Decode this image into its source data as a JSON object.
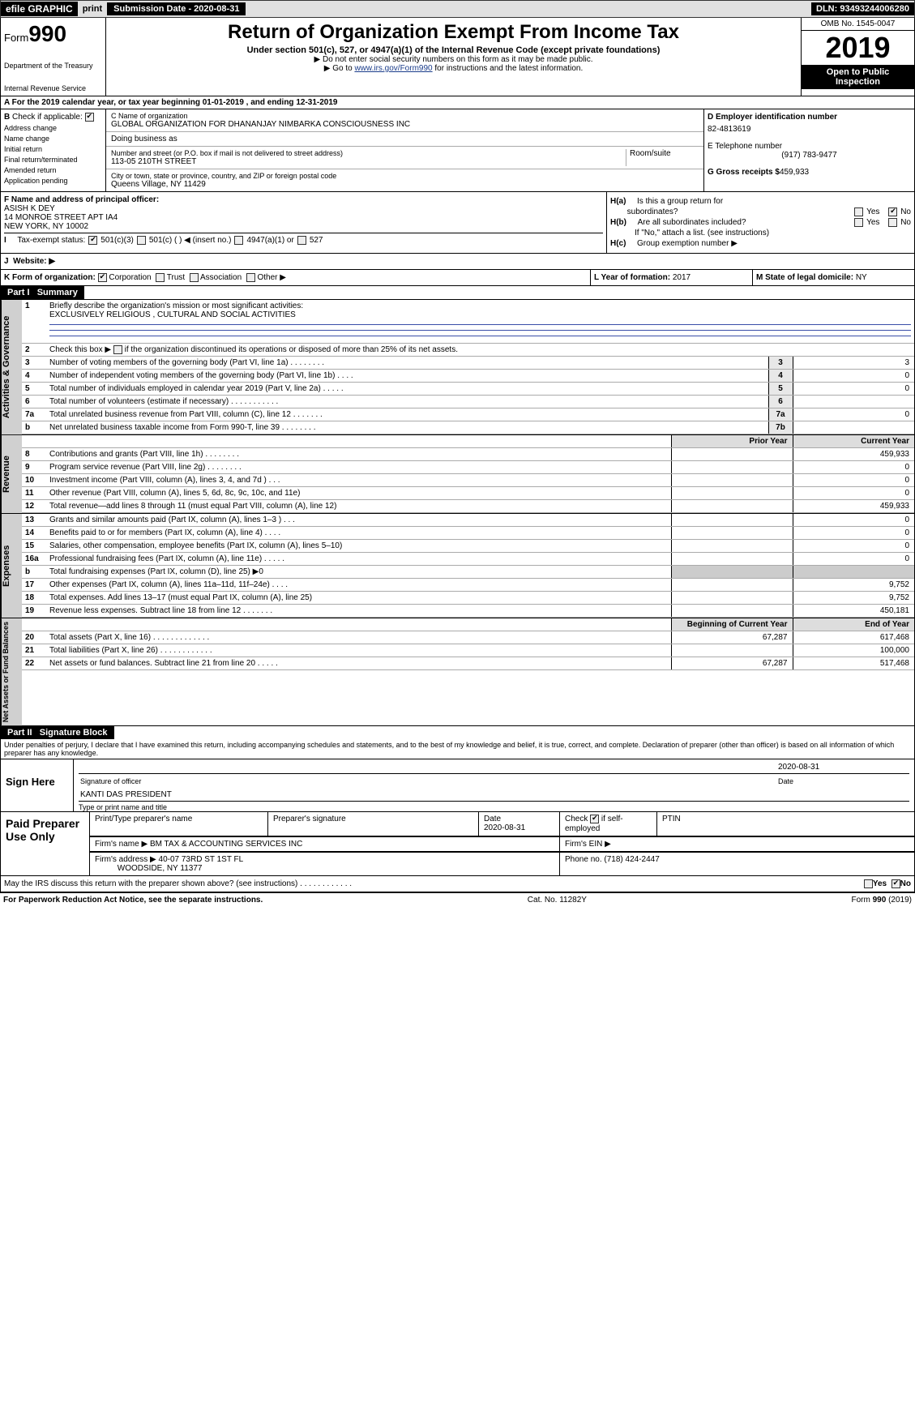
{
  "topbar": {
    "efile": "efile GRAPHIC",
    "print": "print",
    "subdate_label": "Submission Date - ",
    "subdate": "2020-08-31",
    "dln": "DLN: 93493244006280"
  },
  "header": {
    "form_label": "Form",
    "form_no": "990",
    "title": "Return of Organization Exempt From Income Tax",
    "subtitle": "Under section 501(c), 527, or 4947(a)(1) of the Internal Revenue Code (except private foundations)",
    "note1": "▶ Do not enter social security numbers on this form as it may be made public.",
    "note2_pre": "▶ Go to ",
    "note2_link": "www.irs.gov/Form990",
    "note2_post": " for instructions and the latest information.",
    "dept": "Department of the Treasury",
    "irs": "Internal Revenue Service",
    "omb": "OMB No. 1545-0047",
    "year": "2019",
    "open": "Open to Public",
    "insp": "Inspection"
  },
  "rowA": {
    "text": "A   For the 2019 calendar year, or tax year beginning 01-01-2019        , and ending 12-31-2019"
  },
  "secB": {
    "label": "B",
    "check_label": "Check if applicable:",
    "opts": [
      "Address change",
      "Name change",
      "Initial return",
      "Final return/terminated",
      "Amended return",
      "Application pending"
    ],
    "c_label": "C Name of organization",
    "org": "GLOBAL ORGANIZATION FOR DHANANJAY NIMBARKA CONSCIOUSNESS INC",
    "dba_label": "Doing business as",
    "addr_label": "Number and street (or P.O. box if mail is not delivered to street address)",
    "room": "Room/suite",
    "addr": "113-05 210TH STREET",
    "city_label": "City or town, state or province, country, and ZIP or foreign postal code",
    "city": "Queens Village, NY  11429",
    "d_label": "D Employer identification number",
    "ein": "82-4813619",
    "e_label": "E Telephone number",
    "phone": "(917) 783-9477",
    "g_label": "G Gross receipts $",
    "gross": "459,933"
  },
  "secF": {
    "f_label": "F  Name and address of principal officer:",
    "officer": "ASISH K DEY",
    "officer_addr": "14 MONROE STREET APT IA4",
    "officer_city": "NEW YORK, NY  10002",
    "i_label": "I",
    "tax_label": "Tax-exempt status:",
    "i501c3": "501(c)(3)",
    "i501c": "501(c) (   ) ◀ (insert no.)",
    "i4947": "4947(a)(1) or",
    "i527": "527",
    "ha": "H(a)",
    "ha_q": "Is this a group return for",
    "ha_q2": "subordinates?",
    "yes": "Yes",
    "no": "No",
    "hb": "H(b)",
    "hb_q": "Are all subordinates included?",
    "hb_note": "If \"No,\" attach a list. (see instructions)",
    "hc": "H(c)",
    "hc_q": "Group exemption number ▶"
  },
  "rowJ": {
    "label": "J",
    "website": "Website: ▶"
  },
  "rowK": {
    "k_label": "K Form of organization:",
    "corp": "Corporation",
    "trust": "Trust",
    "assoc": "Association",
    "other": "Other ▶",
    "l_label": "L Year of formation: ",
    "l_val": "2017",
    "m_label": "M State of legal domicile: ",
    "m_val": "NY"
  },
  "part1": {
    "title": "Part I",
    "sub": "Summary"
  },
  "summary": {
    "side1": "Activities & Governance",
    "side2": "Revenue",
    "side3": "Expenses",
    "side4": "Net Assets or Fund Balances",
    "l1": "Briefly describe the organization's mission or most significant activities:",
    "l1v": "EXCLUSIVELY RELIGIOUS , CULTURAL AND SOCIAL ACTIVITIES",
    "l2": "Check this box ▶        if the organization discontinued its operations or disposed of more than 25% of its net assets.",
    "rows_ag": [
      {
        "n": "3",
        "t": "Number of voting members of the governing body (Part VI, line 1a)   .      .      .      .      .      .      .      .",
        "r": "3",
        "v": "3"
      },
      {
        "n": "4",
        "t": "Number of independent voting members of the governing body (Part VI, line 1b)   .      .      .      .",
        "r": "4",
        "v": "0"
      },
      {
        "n": "5",
        "t": "Total number of individuals employed in calendar year 2019 (Part V, line 2a)   .      .      .      .      .",
        "r": "5",
        "v": "0"
      },
      {
        "n": "6",
        "t": "Total number of volunteers (estimate if necessary)   .      .      .      .      .      .      .      .      .      .      .",
        "r": "6",
        "v": ""
      },
      {
        "n": "7a",
        "t": "Total unrelated business revenue from Part VIII, column (C), line 12   .      .      .      .      .      .      .",
        "r": "7a",
        "v": "0"
      },
      {
        "n": "b",
        "t": "Net unrelated business taxable income from Form 990-T, line 39   .      .      .      .      .      .      .      .",
        "r": "7b",
        "v": ""
      }
    ],
    "prior": "Prior Year",
    "current": "Current Year",
    "rows_rev": [
      {
        "n": "8",
        "t": "Contributions and grants (Part VIII, line 1h)   .      .      .      .      .      .      .      .",
        "p": "",
        "c": "459,933"
      },
      {
        "n": "9",
        "t": "Program service revenue (Part VIII, line 2g)   .      .      .      .      .      .      .      .",
        "p": "",
        "c": "0"
      },
      {
        "n": "10",
        "t": "Investment income (Part VIII, column (A), lines 3, 4, and 7d )   .      .      .",
        "p": "",
        "c": "0"
      },
      {
        "n": "11",
        "t": "Other revenue (Part VIII, column (A), lines 5, 6d, 8c, 9c, 10c, and 11e)",
        "p": "",
        "c": "0"
      },
      {
        "n": "12",
        "t": "Total revenue—add lines 8 through 11 (must equal Part VIII, column (A), line 12)",
        "p": "",
        "c": "459,933"
      }
    ],
    "rows_exp": [
      {
        "n": "13",
        "t": "Grants and similar amounts paid (Part IX, column (A), lines 1–3 )   .      .      .",
        "p": "",
        "c": "0"
      },
      {
        "n": "14",
        "t": "Benefits paid to or for members (Part IX, column (A), line 4)   .      .      .      .",
        "p": "",
        "c": "0"
      },
      {
        "n": "15",
        "t": "Salaries, other compensation, employee benefits (Part IX, column (A), lines 5–10)",
        "p": "",
        "c": "0"
      },
      {
        "n": "16a",
        "t": "Professional fundraising fees (Part IX, column (A), line 11e)   .      .      .      .      .",
        "p": "",
        "c": "0"
      },
      {
        "n": "b",
        "t": "Total fundraising expenses (Part IX, column (D), line 25) ▶0",
        "p": "—",
        "c": "—"
      },
      {
        "n": "17",
        "t": "Other expenses (Part IX, column (A), lines 11a–11d, 11f–24e)   .      .      .      .",
        "p": "",
        "c": "9,752"
      },
      {
        "n": "18",
        "t": "Total expenses. Add lines 13–17 (must equal Part IX, column (A), line 25)",
        "p": "",
        "c": "9,752"
      },
      {
        "n": "19",
        "t": "Revenue less expenses. Subtract line 18 from line 12   .      .      .      .      .      .      .",
        "p": "",
        "c": "450,181"
      }
    ],
    "begin": "Beginning of Current Year",
    "end": "End of Year",
    "rows_net": [
      {
        "n": "20",
        "t": "Total assets (Part X, line 16)   .      .      .      .      .      .      .      .      .      .      .      .      .",
        "p": "67,287",
        "c": "617,468"
      },
      {
        "n": "21",
        "t": "Total liabilities (Part X, line 26)   .      .      .      .      .      .      .      .      .      .      .      .",
        "p": "",
        "c": "100,000"
      },
      {
        "n": "22",
        "t": "Net assets or fund balances. Subtract line 21 from line 20   .      .      .      .      .",
        "p": "67,287",
        "c": "517,468"
      }
    ]
  },
  "part2": {
    "title": "Part II",
    "sub": "Signature Block",
    "perjury": "Under penalties of perjury, I declare that I have examined this return, including accompanying schedules and statements, and to the best of my knowledge and belief, it is true, correct, and complete. Declaration of preparer (other than officer) is based on all information of which preparer has any knowledge."
  },
  "sign": {
    "here": "Sign Here",
    "sig_of": "Signature of officer",
    "date_l": "Date",
    "date": "2020-08-31",
    "name": "KANTI DAS  PRESIDENT",
    "name_l": "Type or print name and title"
  },
  "paid": {
    "label": "Paid Preparer Use Only",
    "pname_l": "Print/Type preparer's name",
    "psig_l": "Preparer's signature",
    "pdate_l": "Date",
    "pdate": "2020-08-31",
    "check_l": "Check",
    "if_self": "if self-employed",
    "ptin_l": "PTIN",
    "firm_l": "Firm's name   ▶",
    "firm": "BM TAX & ACCOUNTING SERVICES INC",
    "fein_l": "Firm's EIN ▶",
    "faddr_l": "Firm's address ▶",
    "faddr": "40-07 73RD ST 1ST FL",
    "fcity": "WOODSIDE, NY  11377",
    "fphone_l": "Phone no.",
    "fphone": "(718) 424-2447",
    "discuss": "May the IRS discuss this return with the preparer shown above? (see instructions)   .      .      .      .      .      .      .      .      .      .      .      ."
  },
  "footer": {
    "pra": "For Paperwork Reduction Act Notice, see the separate instructions.",
    "cat": "Cat. No. 11282Y",
    "form": "Form 990 (2019)"
  }
}
